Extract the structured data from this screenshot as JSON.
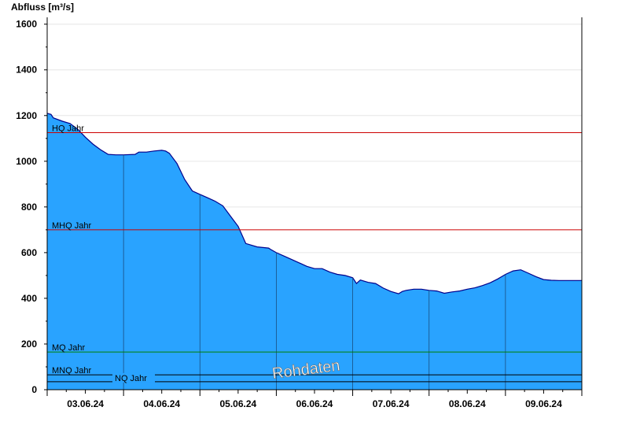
{
  "chart_data": {
    "type": "area",
    "title": "",
    "xlabel": "",
    "ylabel": "Abfluss [m³/s]",
    "ylim": [
      0,
      1630
    ],
    "xlim": [
      0,
      7
    ],
    "yticks": [
      0,
      200,
      400,
      600,
      800,
      1000,
      1200,
      1400,
      1600
    ],
    "ytick_labels": [
      "0",
      "200",
      "400",
      "600",
      "800",
      "1000",
      "1200",
      "1400",
      "1600"
    ],
    "xtick_labels": [
      "03.06.24",
      "04.06.24",
      "05.06.24",
      "06.06.24",
      "07.06.24",
      "08.06.24",
      "09.06.24"
    ],
    "xtick_positions": [
      0.5,
      1.5,
      2.5,
      3.5,
      4.5,
      5.5,
      6.5
    ],
    "day_separators": [
      1,
      2,
      3,
      4,
      5,
      6
    ],
    "grid": true,
    "fill_color": "#29a3ff",
    "line_color": "#00008b",
    "series": [
      {
        "x": [
          0,
          0.05,
          0.08,
          0.2,
          0.3,
          0.4,
          0.5,
          0.6,
          0.7,
          0.8,
          0.9,
          1.0,
          1.15,
          1.2,
          1.3,
          1.4,
          1.5,
          1.55,
          1.6,
          1.7,
          1.8,
          1.9,
          2.0,
          2.1,
          2.2,
          2.3,
          2.4,
          2.5,
          2.6,
          2.75,
          2.9,
          2.92,
          3.0,
          3.1,
          3.2,
          3.3,
          3.4,
          3.5,
          3.6,
          3.7,
          3.8,
          3.9,
          4.0,
          4.05,
          4.1,
          4.2,
          4.3,
          4.4,
          4.5,
          4.6,
          4.65,
          4.7,
          4.8,
          4.9,
          5.0,
          5.1,
          5.2,
          5.3,
          5.4,
          5.5,
          5.6,
          5.7,
          5.8,
          5.9,
          6.0,
          6.1,
          6.2,
          6.3,
          6.4,
          6.5,
          6.6,
          6.7,
          6.75,
          6.8,
          6.9,
          7.0
        ],
        "values": [
          1210,
          1205,
          1190,
          1175,
          1165,
          1140,
          1105,
          1075,
          1050,
          1030,
          1028,
          1028,
          1030,
          1040,
          1040,
          1045,
          1048,
          1045,
          1035,
          990,
          920,
          870,
          855,
          840,
          825,
          805,
          760,
          715,
          640,
          625,
          620,
          615,
          600,
          585,
          570,
          555,
          540,
          530,
          530,
          515,
          505,
          500,
          490,
          465,
          480,
          470,
          465,
          445,
          430,
          420,
          430,
          435,
          440,
          440,
          435,
          432,
          422,
          428,
          432,
          440,
          446,
          456,
          468,
          485,
          505,
          520,
          525,
          510,
          495,
          482,
          479,
          478,
          478,
          478,
          478,
          478
        ]
      }
    ],
    "reference_lines": [
      {
        "label": "HQ Jahr",
        "value": 1125,
        "color": "#cc0000"
      },
      {
        "label": "MHQ Jahr",
        "value": 700,
        "color": "#cc0000"
      },
      {
        "label": "MQ Jahr",
        "value": 165,
        "color": "#008000"
      },
      {
        "label": "MNQ Jahr",
        "value": 65,
        "color": "#000000"
      },
      {
        "label": "NQ Jahr",
        "value": 35,
        "color": "#000000"
      }
    ],
    "watermark": "Rohdaten"
  }
}
